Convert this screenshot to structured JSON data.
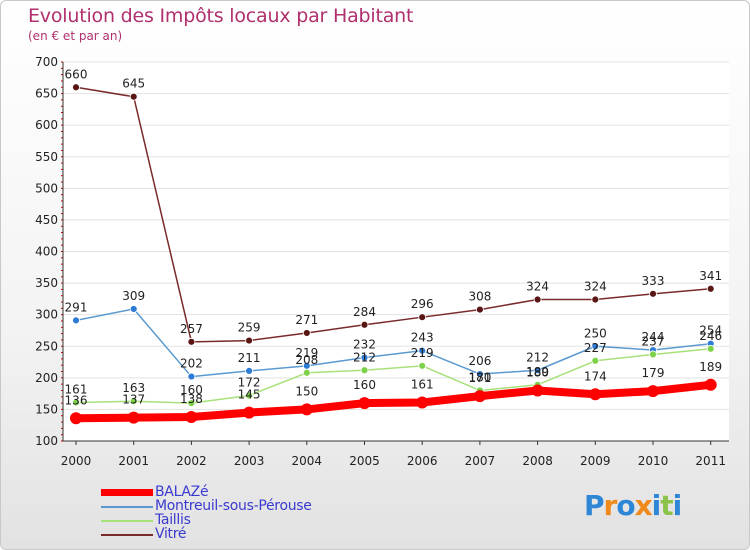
{
  "title": "Evolution des Impôts locaux par Habitant",
  "subtitle": "(en € et par an)",
  "logo": {
    "letters": [
      "P",
      "r",
      "o",
      "x",
      "i",
      "t",
      "i"
    ],
    "colors": [
      "#2e86d6",
      "#f08a1c",
      "#2e86d6",
      "#f08a1c",
      "#2e86d6",
      "#8bc34a",
      "#2e86d6"
    ]
  },
  "chart_data": {
    "type": "line",
    "x": [
      "2000",
      "2001",
      "2002",
      "2003",
      "2004",
      "2005",
      "2006",
      "2007",
      "2008",
      "2009",
      "2010",
      "2011"
    ],
    "ylim": [
      100,
      700
    ],
    "yticks": [
      100,
      150,
      200,
      250,
      300,
      350,
      400,
      450,
      500,
      550,
      600,
      650,
      700
    ],
    "grid": "horizontal",
    "legend_position": "bottom-left",
    "series": [
      {
        "name": "Vitré",
        "color": "#7a2a2a",
        "point_color": "#5a1515",
        "values": [
          660,
          645,
          257,
          259,
          271,
          284,
          296,
          308,
          324,
          324,
          333,
          341
        ],
        "labels": [
          "660",
          "645",
          "257",
          "259",
          "271",
          "284",
          "296",
          "308",
          "324",
          "324",
          "333",
          "341"
        ]
      },
      {
        "name": "Montreuil-sous-Pérouse",
        "color": "#5a9ad0",
        "point_color": "#2e7bd6",
        "values": [
          291,
          309,
          202,
          211,
          219,
          232,
          243,
          206,
          212,
          250,
          244,
          254
        ],
        "labels": [
          "291",
          "309",
          "202",
          "211",
          "219",
          "232",
          "243",
          "206",
          "212",
          "250",
          "244",
          "254"
        ]
      },
      {
        "name": "Taillis",
        "color": "#a8e07a",
        "point_color": "#7ed24a",
        "values": [
          161,
          163,
          160,
          172,
          208,
          212,
          219,
          180,
          189,
          227,
          237,
          246
        ],
        "labels": [
          "161",
          "163",
          "160",
          "172",
          "208",
          "212",
          "219",
          "180",
          "189",
          "227",
          "237",
          "246"
        ]
      },
      {
        "name": "BALAZé",
        "color": "#ff0000",
        "point_color": "#ff0000",
        "values": [
          136,
          137,
          138,
          145,
          150,
          160,
          161,
          171,
          180,
          174,
          179,
          189
        ],
        "labels": [
          "136",
          "137",
          "138",
          "145",
          "150",
          "160",
          "161",
          "171",
          "180",
          "174",
          "179",
          "189"
        ]
      }
    ]
  }
}
